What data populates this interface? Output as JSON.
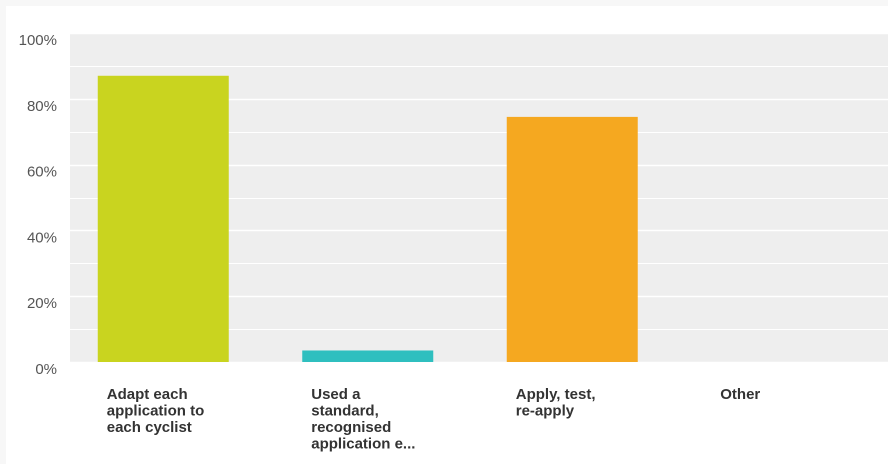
{
  "chart_data": {
    "type": "bar",
    "categories": [
      [
        "Adapt each",
        "application to",
        "each cyclist"
      ],
      [
        "Used a",
        "standard,",
        "recognised",
        "application e..."
      ],
      [
        "Apply, test,",
        "re-apply"
      ],
      [
        "Other"
      ]
    ],
    "values": [
      87,
      3.5,
      74.5,
      0
    ],
    "colors": [
      "#c9d41f",
      "#2fbfbf",
      "#f5a820",
      "#bdbdbd"
    ],
    "yticks": [
      "0%",
      "20%",
      "40%",
      "60%",
      "80%",
      "100%"
    ],
    "ylim": [
      0,
      100
    ],
    "grid": true,
    "plot_background": "#eeeeee",
    "title": "",
    "xlabel": "",
    "ylabel": ""
  }
}
